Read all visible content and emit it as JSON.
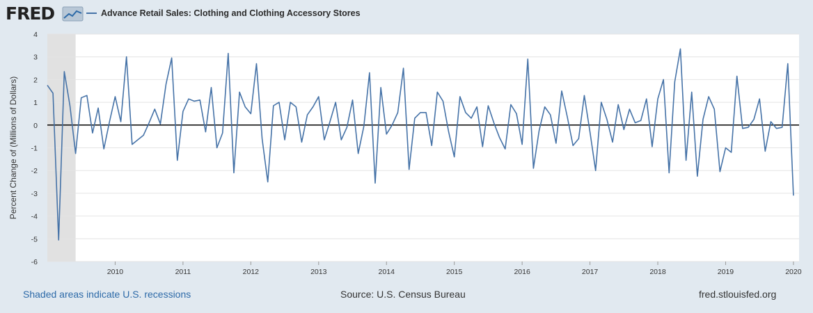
{
  "brand": {
    "logo_text": "FRED"
  },
  "colors": {
    "background": "#e1e9f0",
    "plot_bg": "#ffffff",
    "series": "#4572a7",
    "recession": "#e1e1e1",
    "zero_line": "#000000",
    "grid": "#e4e4e4"
  },
  "footer": {
    "recession_note": "Shaded areas indicate U.S. recessions",
    "source": "Source: U.S. Census Bureau",
    "site": "fred.stlouisfed.org"
  },
  "chart_data": {
    "type": "line",
    "title": "Advance Retail Sales: Clothing and Clothing Accessory Stores",
    "ylabel": "Percent Change of (Millions of Dollars)",
    "xlabel": "",
    "ylim": [
      -6,
      4
    ],
    "yticks": [
      4,
      3,
      2,
      1,
      0,
      -1,
      -2,
      -3,
      -4,
      -5,
      -6
    ],
    "x_start": 2009.0,
    "x_end": 2020.083,
    "xticks": [
      "2010",
      "2011",
      "2012",
      "2013",
      "2014",
      "2015",
      "2016",
      "2017",
      "2018",
      "2019",
      "2020"
    ],
    "recession": {
      "start": 2009.0,
      "end": 2009.417
    },
    "series": [
      {
        "name": "Advance Retail Sales: Clothing and Clothing Accessory Stores",
        "start": "2009-01",
        "frequency": "monthly",
        "values": [
          1.75,
          1.4,
          -5.05,
          2.35,
          0.85,
          -1.25,
          1.2,
          1.3,
          -0.35,
          0.75,
          -1.05,
          0.15,
          1.25,
          0.15,
          3.0,
          -0.85,
          -0.65,
          -0.45,
          0.1,
          0.7,
          0.05,
          1.8,
          2.95,
          -1.55,
          0.6,
          1.15,
          1.05,
          1.1,
          -0.3,
          1.65,
          -1.0,
          -0.35,
          3.15,
          -2.1,
          1.45,
          0.8,
          0.5,
          2.7,
          -0.6,
          -2.5,
          0.85,
          1.0,
          -0.65,
          1.0,
          0.8,
          -0.75,
          0.45,
          0.8,
          1.25,
          -0.65,
          0.15,
          1.0,
          -0.65,
          -0.1,
          1.1,
          -1.25,
          -0.05,
          2.3,
          -2.55,
          1.65,
          -0.4,
          0.0,
          0.55,
          2.5,
          -1.95,
          0.3,
          0.55,
          0.55,
          -0.9,
          1.45,
          1.05,
          -0.3,
          -1.4,
          1.25,
          0.55,
          0.3,
          0.8,
          -0.95,
          0.85,
          0.1,
          -0.55,
          -1.05,
          0.9,
          0.5,
          -0.85,
          2.9,
          -1.9,
          -0.25,
          0.8,
          0.45,
          -0.8,
          1.5,
          0.35,
          -0.9,
          -0.6,
          1.3,
          -0.3,
          -2.0,
          1.0,
          0.25,
          -0.75,
          0.9,
          -0.2,
          0.7,
          0.1,
          0.2,
          1.15,
          -0.95,
          1.15,
          2.0,
          -2.1,
          1.9,
          3.35,
          -1.55,
          1.45,
          -2.25,
          0.25,
          1.25,
          0.7,
          -2.05,
          -1.0,
          -1.2,
          2.15,
          -0.15,
          -0.1,
          0.25,
          1.15,
          -1.15,
          0.15,
          -0.15,
          -0.1,
          2.7,
          -3.1
        ]
      }
    ]
  }
}
